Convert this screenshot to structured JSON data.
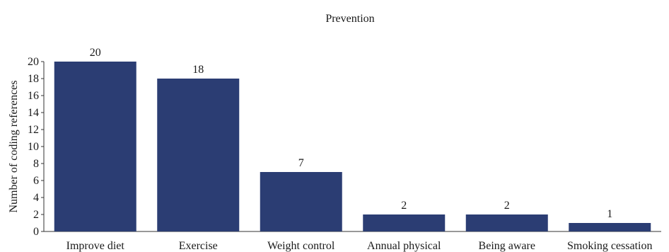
{
  "chart_data": {
    "type": "bar",
    "title": "Prevention",
    "xlabel": "",
    "ylabel": "Number of coding references",
    "categories": [
      "Improve diet",
      "Exercise",
      "Weight control",
      "Annual physical",
      "Being aware",
      "Smoking cessation"
    ],
    "values": [
      20,
      18,
      7,
      2,
      2,
      1
    ],
    "ylim": [
      0,
      20
    ],
    "yticks": [
      "0",
      "2",
      "4",
      "6",
      "8",
      "10",
      "12",
      "14",
      "16",
      "18",
      "20"
    ],
    "bar_color": "#2b3d73",
    "grid": false,
    "legend": "none",
    "data_labels": true
  }
}
